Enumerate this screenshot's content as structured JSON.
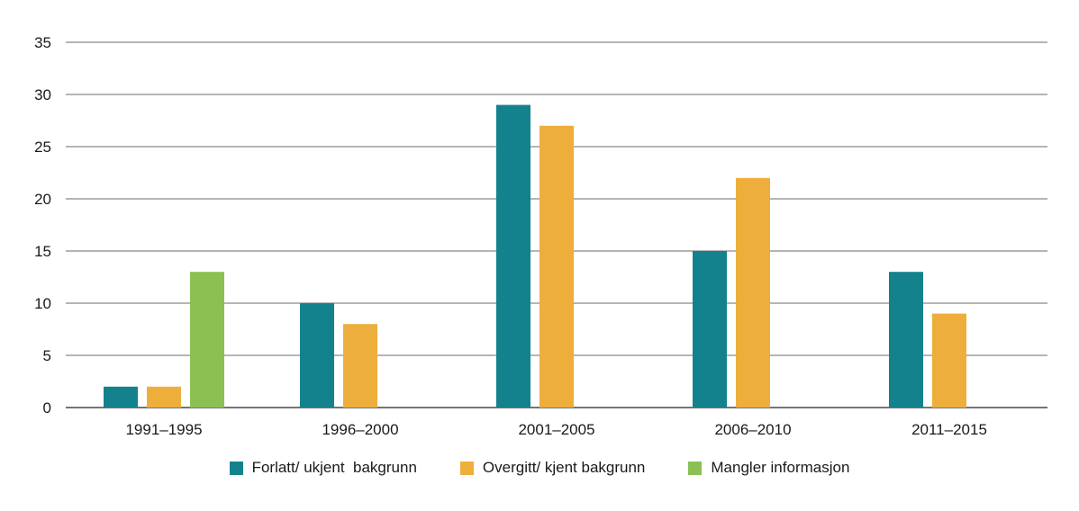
{
  "chart_data": {
    "type": "bar",
    "categories": [
      "1991–1995",
      "1996–2000",
      "2001–2005",
      "2006–2010",
      "2011–2015"
    ],
    "series": [
      {
        "name": "Forlatt/ ukjent  bakgrunn",
        "color": "#13828c",
        "values": [
          2,
          10,
          29,
          15,
          13
        ]
      },
      {
        "name": "Overgitt/ kjent bakgrunn",
        "color": "#eeae3b",
        "values": [
          2,
          8,
          27,
          22,
          9
        ]
      },
      {
        "name": "Mangler informasjon",
        "color": "#8bc152",
        "values": [
          13,
          null,
          null,
          null,
          null
        ]
      }
    ],
    "ylim": [
      0,
      35
    ],
    "yticks": [
      0,
      5,
      10,
      15,
      20,
      25,
      30,
      35
    ],
    "grid": true,
    "legend_position": "bottom"
  }
}
